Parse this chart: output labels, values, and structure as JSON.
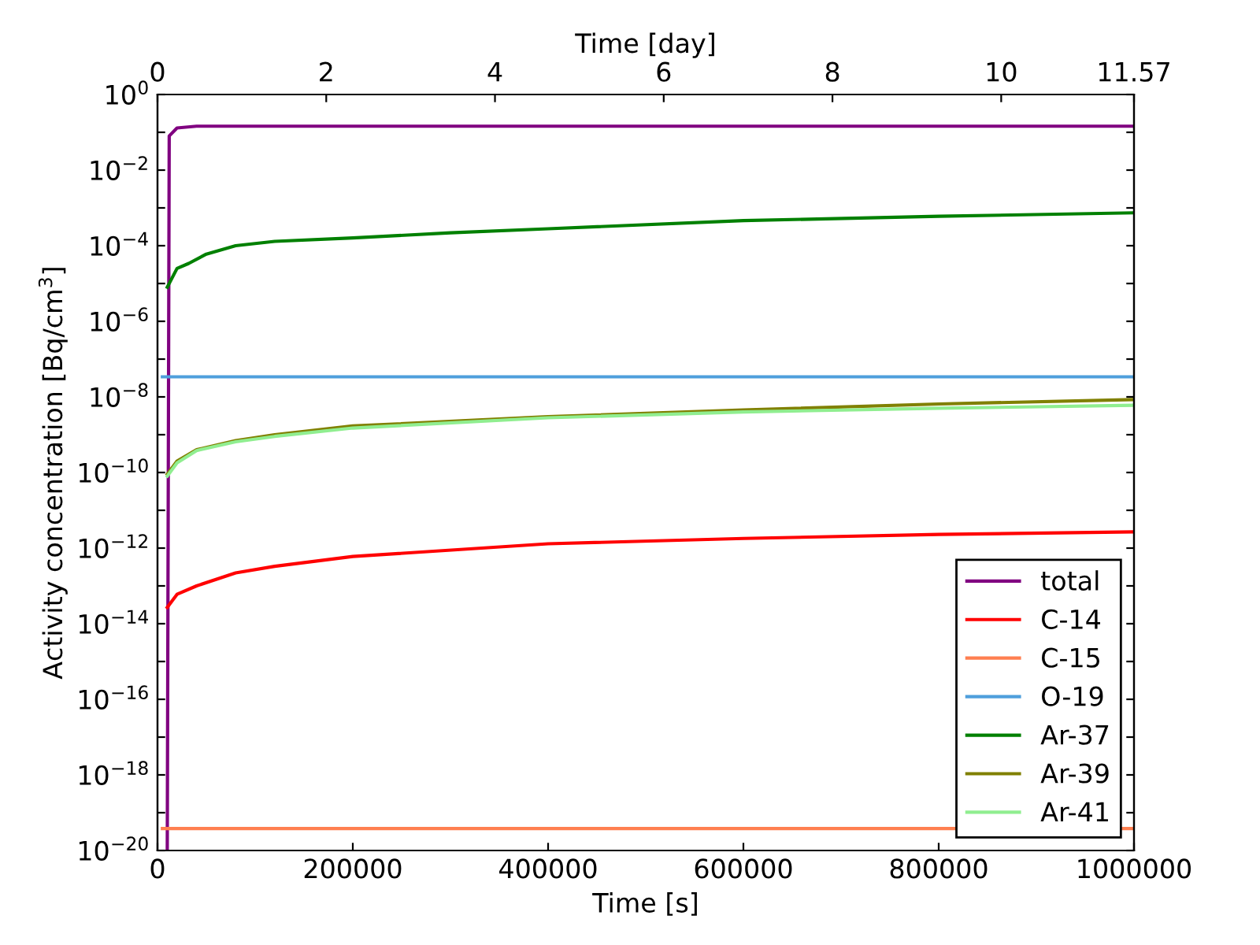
{
  "chart_data": {
    "type": "line",
    "xlabel": "Time [s]",
    "x2label": "Time [day]",
    "ylabel": "Activity concentration [Bq/cm$^{3}$]",
    "log": "y",
    "xlim": [
      0,
      1000000
    ],
    "xticks": [
      0,
      200000,
      400000,
      600000,
      800000,
      1000000
    ],
    "x2lim": [
      0,
      11.574
    ],
    "x2ticks": [
      0,
      2,
      4,
      6,
      8,
      10,
      {
        "value": 11.574,
        "label": "11.57"
      }
    ],
    "ylim": [
      1e-20,
      1
    ],
    "yticks": [
      {
        "value": 1,
        "label": "10$^{0}$"
      },
      {
        "value": 0.1,
        "label": null
      },
      {
        "value": 0.01,
        "label": "10$^{−2}$"
      },
      {
        "value": 0.001,
        "label": null
      },
      {
        "value": 0.0001,
        "label": "10$^{−4}$"
      },
      {
        "value": 1e-05,
        "label": null
      },
      {
        "value": 1e-06,
        "label": "10$^{−6}$"
      },
      {
        "value": 1e-07,
        "label": null
      },
      {
        "value": 1e-08,
        "label": "10$^{−8}$"
      },
      {
        "value": 1e-09,
        "label": null
      },
      {
        "value": 1e-10,
        "label": "10$^{−10}$"
      },
      {
        "value": 1e-11,
        "label": null
      },
      {
        "value": 1e-12,
        "label": "10$^{−12}$"
      },
      {
        "value": 1e-13,
        "label": null
      },
      {
        "value": 1e-14,
        "label": "10$^{−14}$"
      },
      {
        "value": 1e-15,
        "label": null
      },
      {
        "value": 1e-16,
        "label": "10$^{−16}$"
      },
      {
        "value": 1e-17,
        "label": null
      },
      {
        "value": 1e-18,
        "label": "10$^{−18}$"
      },
      {
        "value": 1e-19,
        "label": null
      },
      {
        "value": 1e-20,
        "label": "10$^{−20}$"
      }
    ],
    "grid": false,
    "legend": "bottom right",
    "series": [
      {
        "name": "total",
        "color": "#800080",
        "x": [
          10000,
          12000,
          20000,
          40000,
          1000000
        ],
        "values": [
          1e-20,
          0.08,
          0.13,
          0.145,
          0.145
        ]
      },
      {
        "name": "C-14",
        "color": "#ff0000",
        "x": [
          10000,
          20000,
          40000,
          80000,
          120000,
          200000,
          400000,
          600000,
          800000,
          1000000
        ],
        "values": [
          2.7e-14,
          6e-14,
          1e-13,
          2.2e-13,
          3.3e-13,
          6e-13,
          1.3e-12,
          1.8e-12,
          2.3e-12,
          2.7e-12
        ]
      },
      {
        "name": "C-15",
        "color": "#ff7f50",
        "x": [
          5000,
          1000000
        ],
        "values": [
          3.8e-20,
          3.8e-20
        ]
      },
      {
        "name": "O-19",
        "color": "#4f9fdc",
        "x": [
          5000,
          1000000
        ],
        "values": [
          3.4e-08,
          3.4e-08
        ]
      },
      {
        "name": "Ar-37",
        "color": "#008000",
        "x": [
          10000,
          20000,
          32000,
          50000,
          80000,
          120000,
          200000,
          300000,
          400000,
          600000,
          800000,
          1000000
        ],
        "values": [
          8e-06,
          2.5e-05,
          3.4e-05,
          6e-05,
          0.0001,
          0.00013,
          0.00016,
          0.00022,
          0.00028,
          0.00046,
          0.0006,
          0.00074
        ]
      },
      {
        "name": "Ar-39",
        "color": "#808000",
        "x": [
          10000,
          20000,
          40000,
          80000,
          120000,
          200000,
          400000,
          600000,
          800000,
          1000000
        ],
        "values": [
          9e-11,
          2e-10,
          4e-10,
          7e-10,
          1e-09,
          1.7e-09,
          3e-09,
          4.5e-09,
          6.5e-09,
          8.5e-09
        ]
      },
      {
        "name": "Ar-41",
        "color": "#90ee90",
        "x": [
          10000,
          20000,
          40000,
          80000,
          120000,
          200000,
          400000,
          600000,
          800000,
          1000000
        ],
        "values": [
          8e-11,
          1.8e-10,
          3.8e-10,
          6.5e-10,
          9e-10,
          1.5e-09,
          2.8e-09,
          4e-09,
          5e-09,
          6e-09
        ]
      }
    ]
  }
}
